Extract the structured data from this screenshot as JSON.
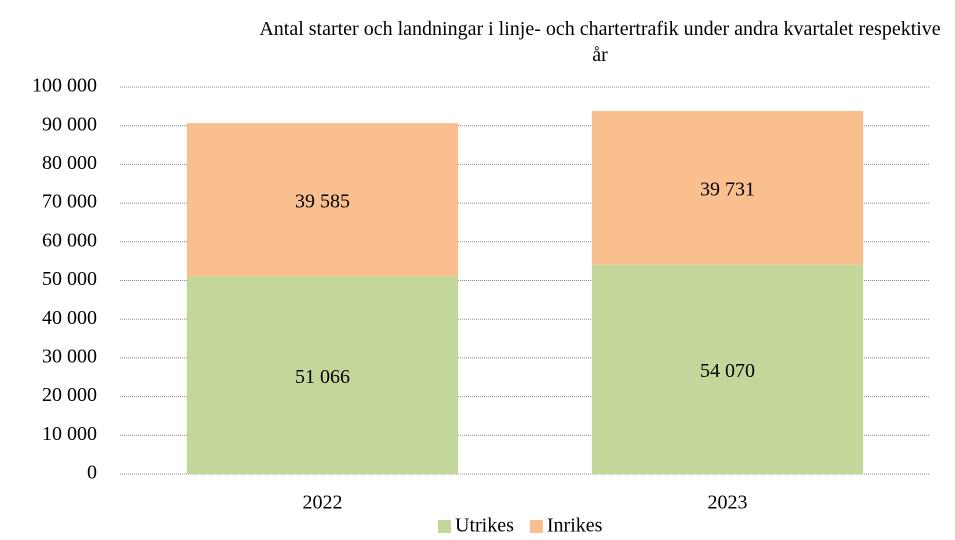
{
  "chart_data": {
    "type": "stacked_bar",
    "title": "Antal starter och landningar i linje- och chartertrafik under andra kvartalet respektive år",
    "categories": [
      "2022",
      "2023"
    ],
    "series": [
      {
        "name": "Utrikes",
        "color": "#c4d79b",
        "values": [
          51066,
          54070
        ],
        "value_labels": [
          "51 066",
          "54 070"
        ]
      },
      {
        "name": "Inrikes",
        "color": "#fabf8f",
        "values": [
          39585,
          39731
        ],
        "value_labels": [
          "39 585",
          "39 731"
        ]
      }
    ],
    "ylim": [
      0,
      100000
    ],
    "yticks": [
      0,
      {
        "value": 10000,
        "label": "10 000"
      },
      {
        "value": 20000,
        "label": "20 000"
      },
      {
        "value": 30000,
        "label": "30 000"
      },
      {
        "value": 40000,
        "label": "40 000"
      },
      {
        "value": 50000,
        "label": "50 000"
      },
      {
        "value": 60000,
        "label": "60 000"
      },
      {
        "value": 70000,
        "label": "70 000"
      },
      {
        "value": 80000,
        "label": "80 000"
      },
      {
        "value": 90000,
        "label": "90 000"
      },
      {
        "value": 100000,
        "label": "100 000"
      }
    ],
    "grid": true,
    "legend": "bottom"
  }
}
